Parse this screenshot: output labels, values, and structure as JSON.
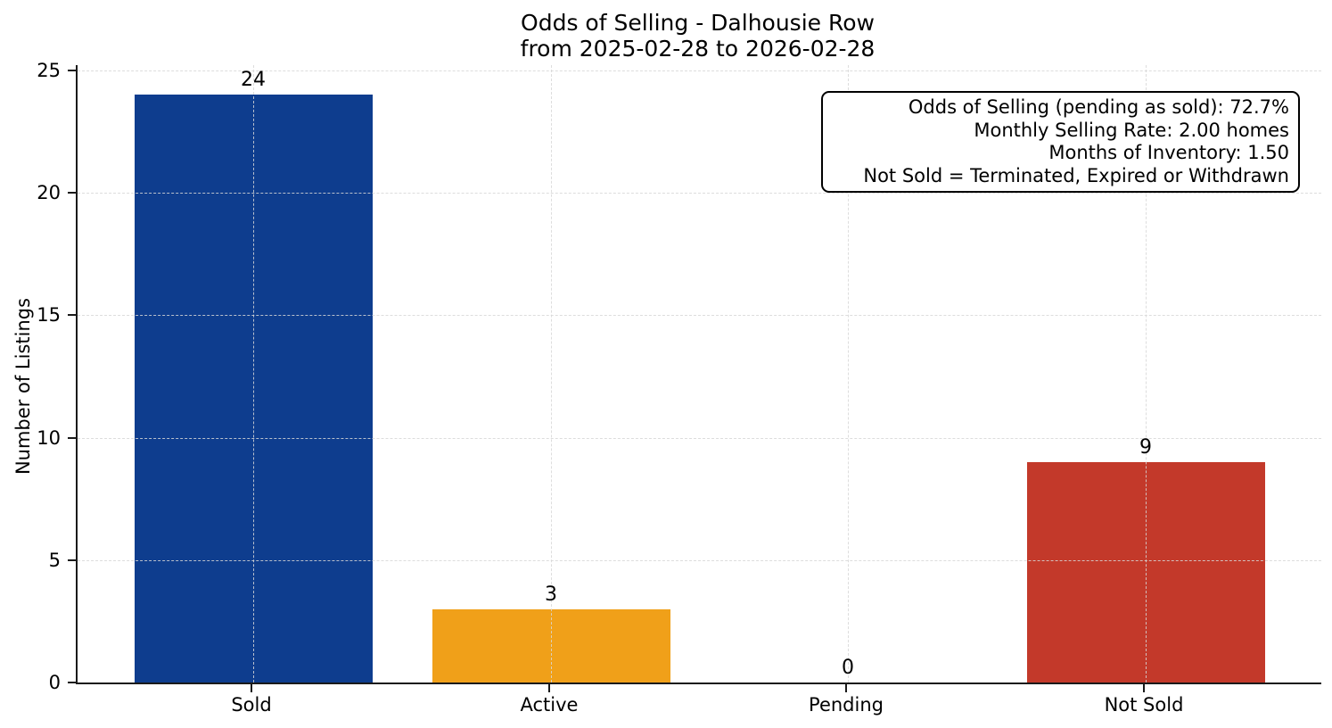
{
  "chart_data": {
    "type": "bar",
    "title": "Odds of Selling - Dalhousie Row\nfrom 2025-02-28 to 2026-02-28",
    "title_lines": [
      "Odds of Selling - Dalhousie Row",
      "from 2025-02-28 to 2026-02-28"
    ],
    "categories": [
      "Sold",
      "Active",
      "Pending",
      "Not Sold"
    ],
    "values": [
      24,
      3,
      0,
      9
    ],
    "bar_labels": [
      "24",
      "3",
      "0",
      "9"
    ],
    "bar_colors": [
      "#0e3d8e",
      "#f0a019",
      null,
      "#c3392a"
    ],
    "xlabel": "",
    "ylabel": "Number of Listings",
    "yticks": [
      0,
      5,
      10,
      15,
      20,
      25
    ],
    "ylim": [
      0,
      25
    ],
    "grid": true,
    "grid_style": "dashed",
    "legend": null,
    "annotation": {
      "position": "top-right",
      "text_align": "right",
      "lines": [
        "Odds of Selling (pending as sold): 72.7%",
        "Monthly Selling Rate: 2.00 homes",
        "Months of Inventory: 1.50",
        "Not Sold = Terminated, Expired or Withdrawn"
      ]
    }
  },
  "colors": {
    "background": "#ffffff",
    "axis": "#1a1a1a",
    "grid": "#d7d7d7",
    "text": "#000000",
    "sold_bar": "#0e3d8e",
    "active_bar": "#f0a019",
    "not_sold_bar": "#c3392a"
  }
}
